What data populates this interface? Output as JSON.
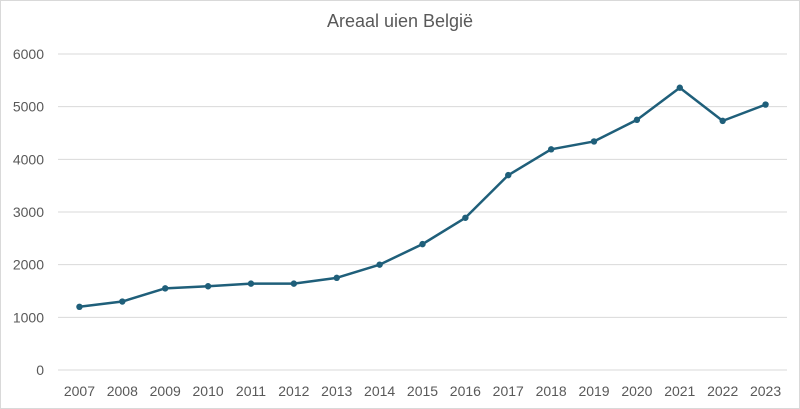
{
  "chart_data": {
    "type": "line",
    "title": "Areaal uien België",
    "xlabel": "",
    "ylabel": "",
    "categories": [
      "2007",
      "2008",
      "2009",
      "2010",
      "2011",
      "2012",
      "2013",
      "2014",
      "2015",
      "2016",
      "2017",
      "2018",
      "2019",
      "2020",
      "2021",
      "2022",
      "2023"
    ],
    "series": [
      {
        "values": [
          1200,
          1300,
          1550,
          1590,
          1640,
          1640,
          1750,
          2000,
          2390,
          2890,
          3700,
          4190,
          4340,
          4750,
          5360,
          4730,
          5040
        ]
      }
    ],
    "ylim": [
      0,
      6000
    ],
    "yticks": [
      "0",
      "1000",
      "2000",
      "3000",
      "4000",
      "5000",
      "6000"
    ],
    "grid": true,
    "legend": "none",
    "colors": {
      "line": "#1f5f7a",
      "grid": "#d9d9d9",
      "text": "#595959"
    }
  }
}
